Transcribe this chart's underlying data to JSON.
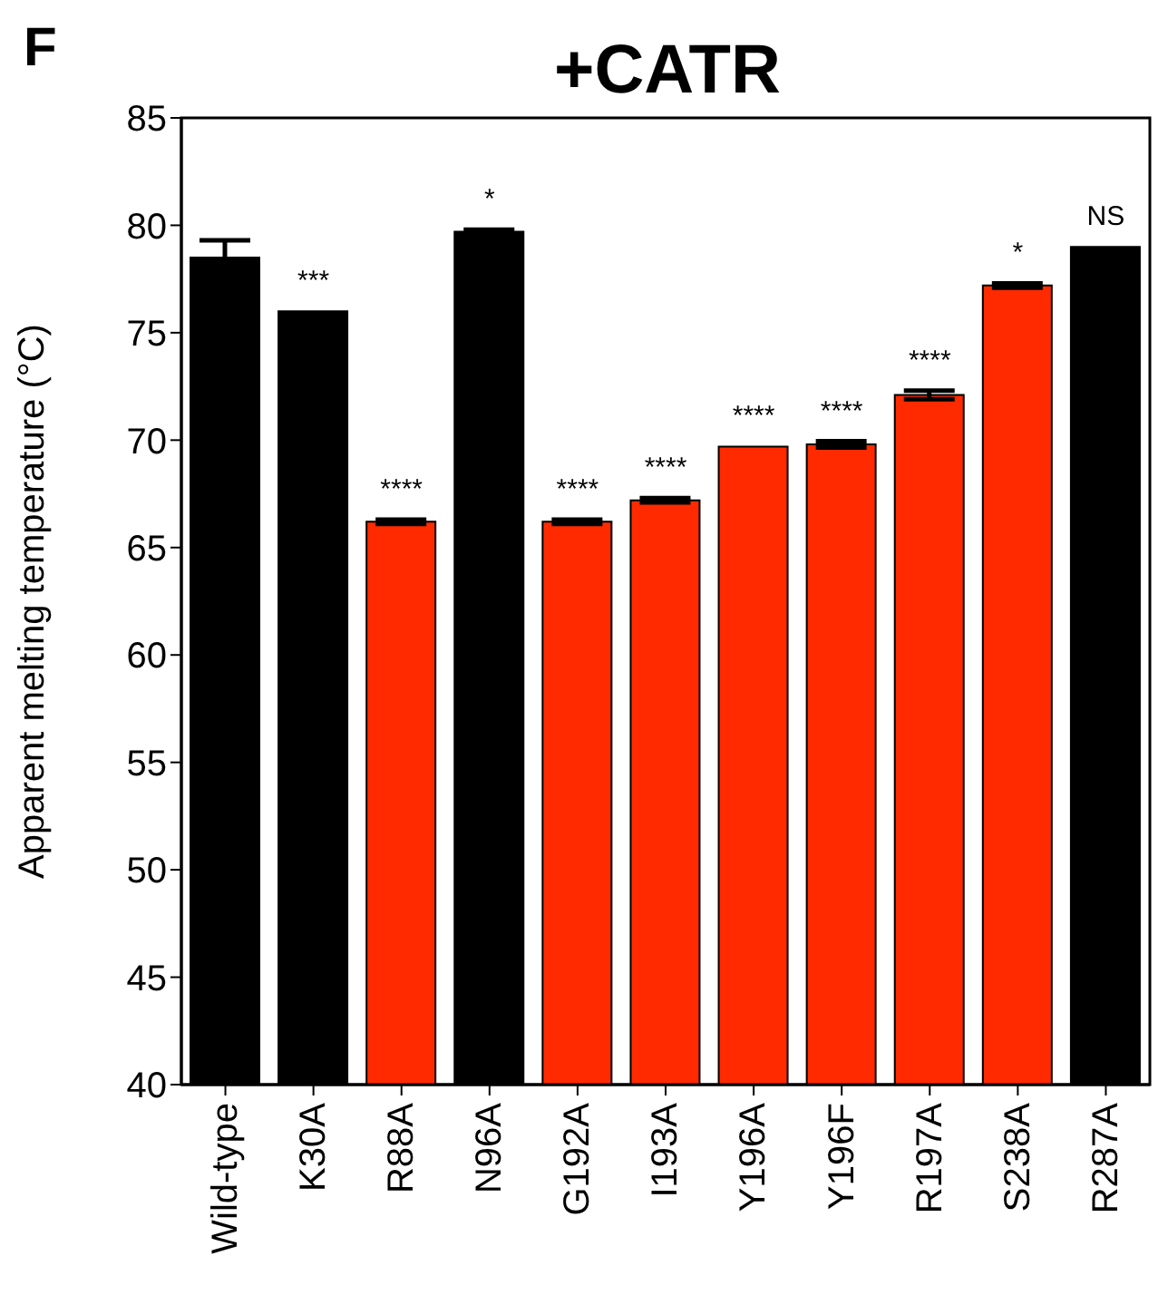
{
  "chart_data": {
    "type": "bar",
    "title": "+CATR",
    "ylabel": "Apparent melting temperature (°C)",
    "categories": [
      "Wild-type",
      "K30A",
      "R88A",
      "N96A",
      "G192A",
      "I193A",
      "Y196A",
      "Y196F",
      "R197A",
      "S238A",
      "R287A"
    ],
    "values": [
      78.5,
      76.0,
      66.2,
      79.7,
      66.2,
      67.2,
      69.7,
      69.8,
      72.1,
      77.2,
      79.0
    ],
    "errors": [
      0.8,
      null,
      0.1,
      0.1,
      0.1,
      0.1,
      null,
      0.15,
      0.2,
      0.1,
      null
    ],
    "colors": [
      "#000000",
      "#000000",
      "#ff2a00",
      "#000000",
      "#ff2a00",
      "#ff2a00",
      "#ff2a00",
      "#ff2a00",
      "#ff2a00",
      "#ff2a00",
      "#000000"
    ],
    "ylim": [
      40,
      85
    ],
    "yticks": [
      40,
      45,
      50,
      55,
      60,
      65,
      70,
      75,
      80,
      85
    ],
    "grid": false,
    "legend": false,
    "annotations": [
      "F",
      {
        "text": "***",
        "x": "K30A",
        "y": 76.0
      },
      {
        "text": "****",
        "x": "R88A",
        "y": 66.2
      },
      {
        "text": "*",
        "x": "N96A",
        "y": 79.7
      },
      {
        "text": "****",
        "x": "G192A",
        "y": 66.2
      },
      {
        "text": "****",
        "x": "I193A",
        "y": 67.2
      },
      {
        "text": "****",
        "x": "Y196A",
        "y": 69.7
      },
      {
        "text": "****",
        "x": "Y196F",
        "y": 69.8
      },
      {
        "text": "****",
        "x": "R197A",
        "y": 72.1
      },
      {
        "text": "*",
        "x": "S238A",
        "y": 77.2
      },
      {
        "text": "NS",
        "x": "R287A",
        "y": 79.0
      }
    ]
  }
}
